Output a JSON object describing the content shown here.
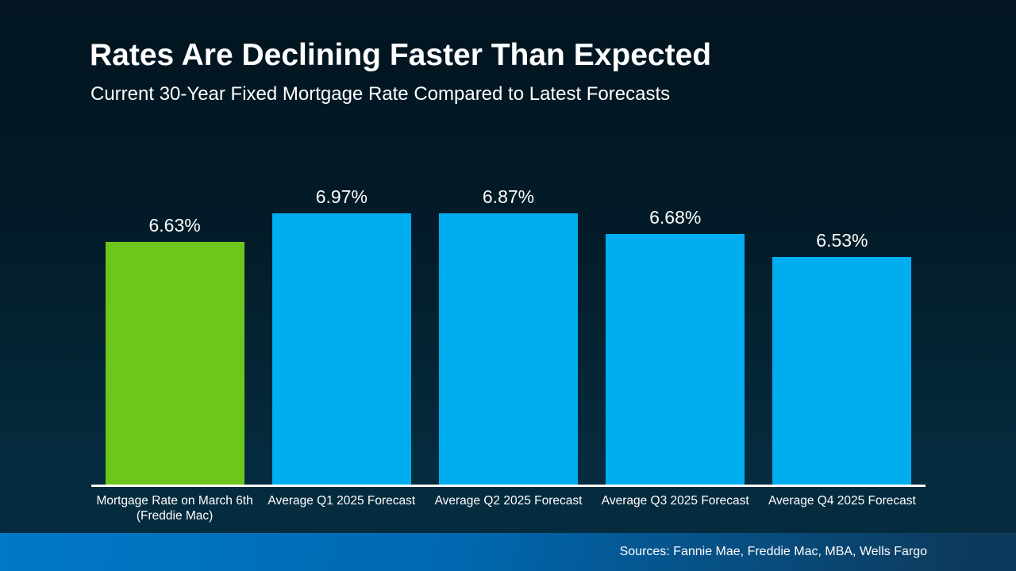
{
  "slide": {
    "title": "Rates Are Declining Faster Than Expected",
    "subtitle": "Current 30-Year Fixed Mortgage Rate Compared to Latest Forecasts",
    "footer": {
      "sources": "Sources: Fannie Mae, Freddie Mac, MBA, Wells Fargo"
    }
  },
  "colors": {
    "current_rate_bar": "#6cc61b",
    "forecast_bar": "#00aeef",
    "axis_line": "#ffffff",
    "text": "#ffffff",
    "background_top": "#021520",
    "background_bottom": "#052b3e",
    "footer_gradient_left": "#0079c8",
    "footer_gradient_mid": "#0068b0",
    "footer_gradient_right": "#0d3a5c"
  },
  "chart_data": {
    "type": "bar",
    "title": "Rates Are Declining Faster Than Expected",
    "subtitle": "Current 30-Year Fixed Mortgage Rate Compared to Latest Forecasts",
    "categories": [
      "Mortgage Rate on March 6th\n(Freddie Mac)",
      "Average Q1 2025 Forecast",
      "Average Q2 2025 Forecast",
      "Average Q3 2025 Forecast",
      "Average Q4 2025 Forecast"
    ],
    "values": [
      6.63,
      6.97,
      6.87,
      6.68,
      6.53
    ],
    "value_labels": [
      "6.63%",
      "6.97%",
      "6.87%",
      "6.68%",
      "6.53%"
    ],
    "bar_colors": [
      "#6cc61b",
      "#00aeef",
      "#00aeef",
      "#00aeef",
      "#00aeef"
    ],
    "xlabel": "",
    "ylabel": "",
    "ylim": [
      5.0,
      7.0
    ],
    "grid": false,
    "legend": false,
    "annotation": "Sources: Fannie Mae, Freddie Mac, MBA, Wells Fargo"
  }
}
